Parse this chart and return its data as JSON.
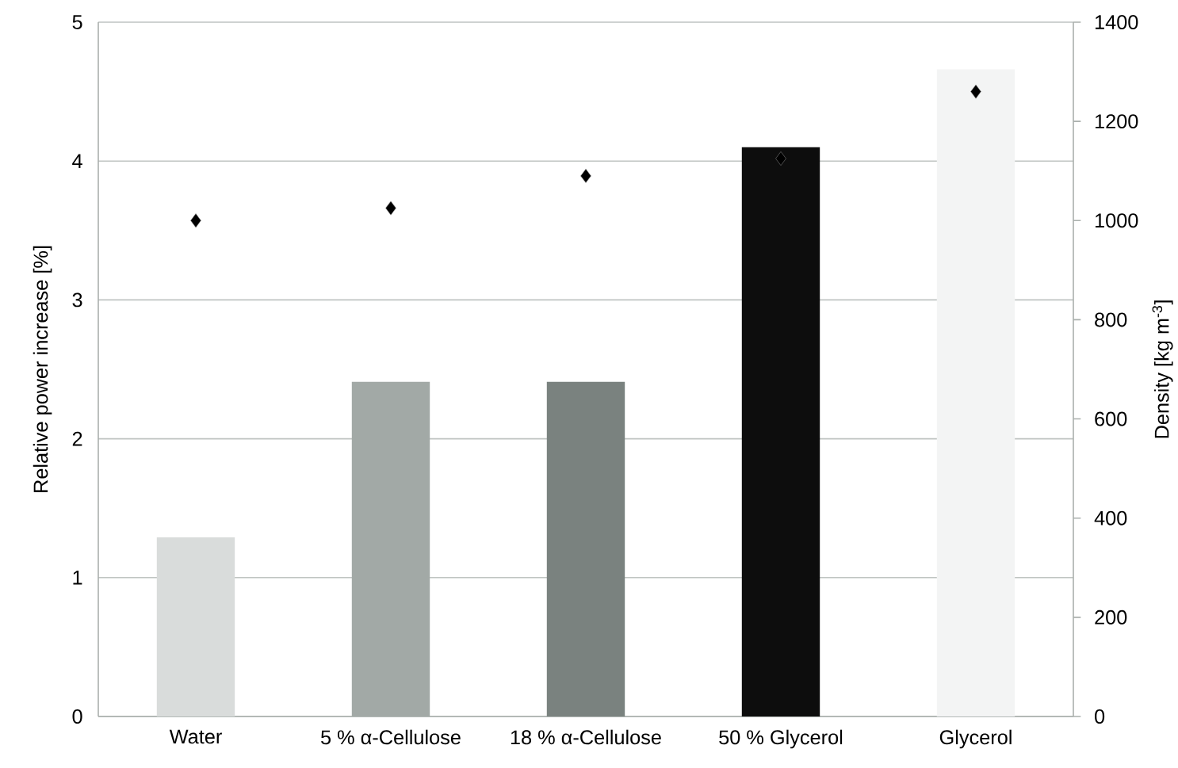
{
  "chart_data": {
    "type": "bar",
    "categories": [
      "Water",
      "5 % α-Cellulose",
      "18 % α-Cellulose",
      "50 % Glycerol",
      "Glycerol"
    ],
    "ylabel": "Relative power increase [%]",
    "y2label": "Density [kg m$^{-3}$]",
    "ylim": [
      0,
      5
    ],
    "yticks": [
      0,
      1,
      2,
      3,
      4,
      5
    ],
    "y2lim": [
      0,
      1400
    ],
    "y2ticks": [
      0,
      200,
      400,
      600,
      800,
      1000,
      1200,
      1400
    ],
    "grid": "y",
    "series": [
      {
        "colors": [
          "#d9dcdb",
          "#a2a9a6",
          "#7a827f",
          "#0d0d0d",
          "#f3f4f4"
        ],
        "values": [
          1.29,
          2.41,
          2.41,
          4.1,
          4.66
        ]
      },
      {
        "type": "scatter",
        "axis": "y2",
        "color": "#000000",
        "marker": "diamond",
        "values": [
          1000,
          1025,
          1090,
          1125,
          1260
        ]
      }
    ]
  }
}
